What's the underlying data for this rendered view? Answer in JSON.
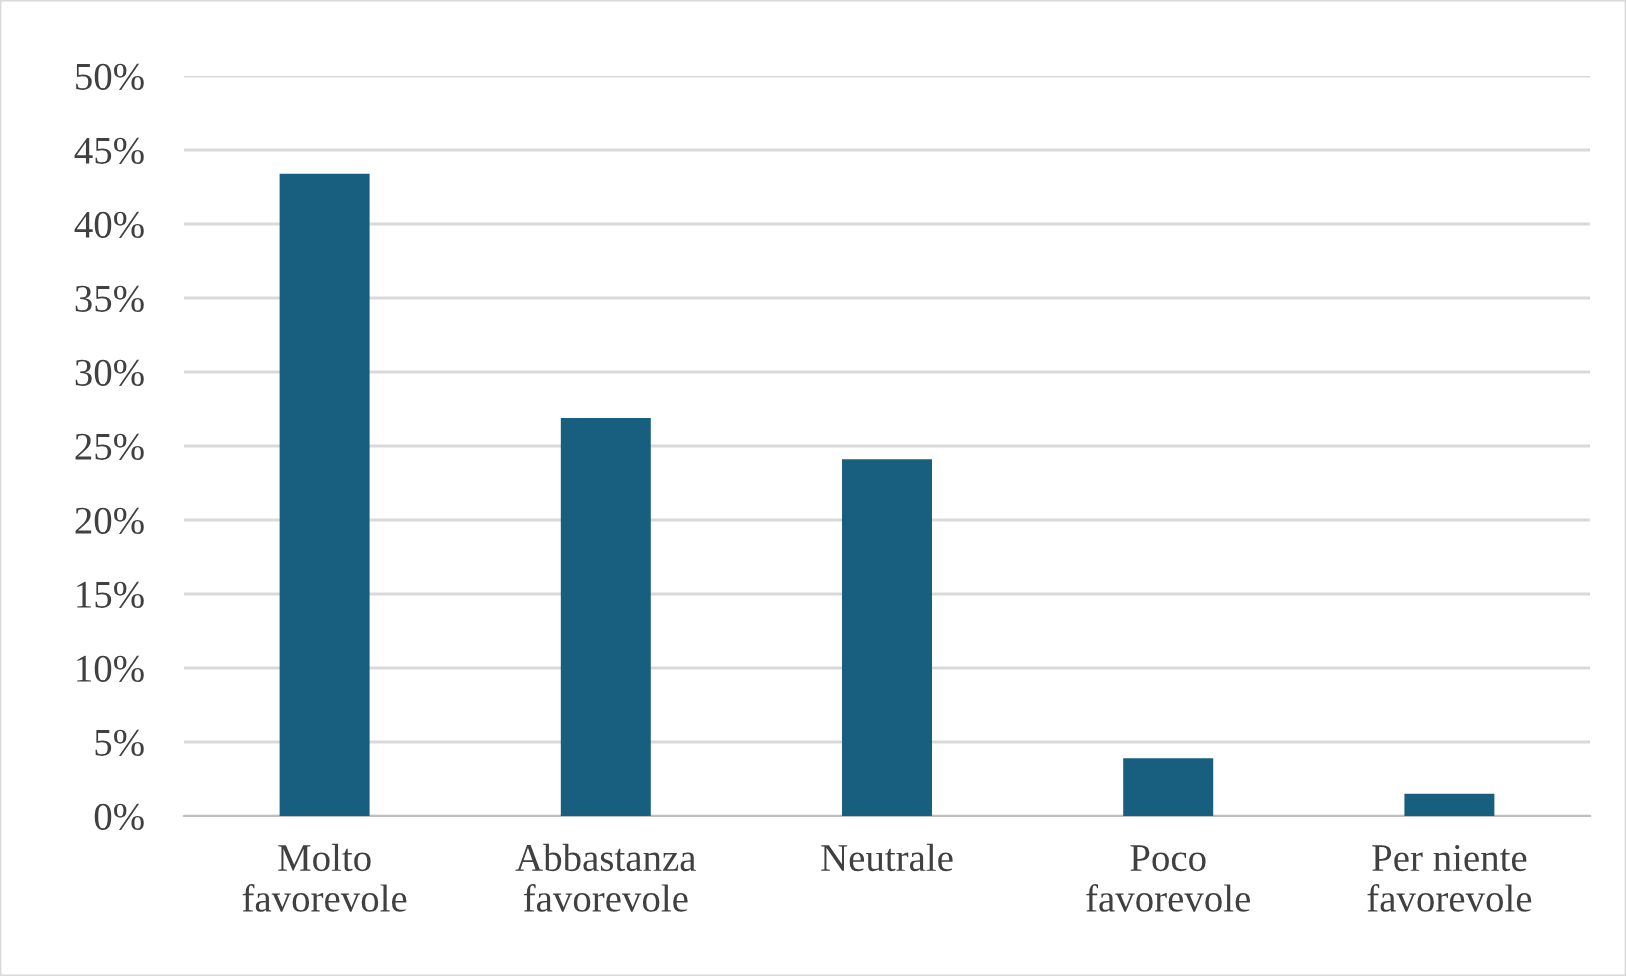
{
  "chart_data": {
    "type": "bar",
    "categories": [
      "Molto\nfavorevole",
      "Abbastanza\nfavorevole",
      "Neutrale",
      "Poco\nfavorevole",
      "Per niente\nfavorevole"
    ],
    "values": [
      43.4,
      26.9,
      24.1,
      3.9,
      1.5
    ],
    "color": "#175e7f",
    "ylim": [
      0,
      50
    ],
    "yticks": [
      {
        "value": 0,
        "label": "0%"
      },
      {
        "value": 5,
        "label": "5%"
      },
      {
        "value": 10,
        "label": "10%"
      },
      {
        "value": 15,
        "label": "15%"
      },
      {
        "value": 20,
        "label": "20%"
      },
      {
        "value": 25,
        "label": "25%"
      },
      {
        "value": 30,
        "label": "30%"
      },
      {
        "value": 35,
        "label": "35%"
      },
      {
        "value": 40,
        "label": "40%"
      },
      {
        "value": 45,
        "label": "45%"
      },
      {
        "value": 50,
        "label": "50%"
      }
    ],
    "grid": "y"
  }
}
